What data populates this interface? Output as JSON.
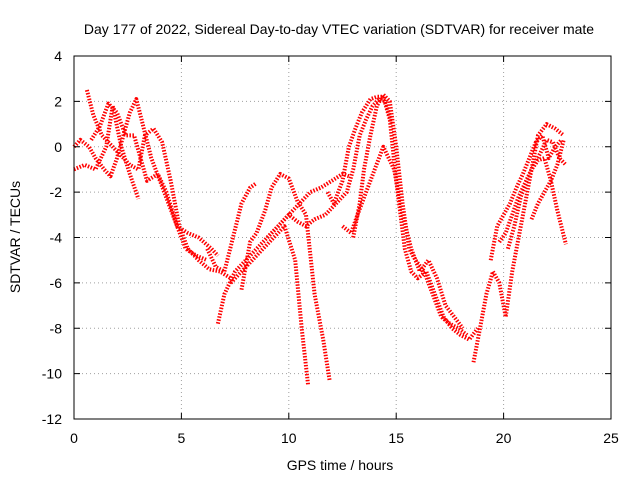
{
  "chart_data": {
    "type": "scatter",
    "title": "Day 177 of 2022, Sidereal Day-to-day VTEC variation (SDTVAR) for receiver mate",
    "xlabel": "GPS time / hours",
    "ylabel": "SDTVAR / TECUs",
    "xlim": [
      0,
      25
    ],
    "ylim": [
      -12,
      4
    ],
    "xticks": [
      0,
      5,
      10,
      15,
      20,
      25
    ],
    "yticks": [
      4,
      2,
      0,
      -2,
      -4,
      -6,
      -8,
      -10,
      -12
    ],
    "grid": true,
    "marker": "plus",
    "color": "#ff0000",
    "series": [
      {
        "x": [
          0.6,
          0.9,
          1.3,
          1.8,
          2.2,
          2.6,
          3.0,
          3.3,
          3.7,
          4.1,
          4.5,
          4.9,
          5.3,
          5.8,
          6.3,
          6.8,
          7.3
        ],
        "y": [
          2.5,
          1.4,
          0.5,
          0.0,
          -0.4,
          -0.8,
          -1.0,
          0.5,
          0.8,
          0.2,
          -1.5,
          -3.5,
          -4.5,
          -5.0,
          -5.4,
          -5.5,
          -5.8
        ]
      },
      {
        "x": [
          0.0,
          0.3,
          0.7,
          1.0,
          1.4,
          1.7,
          2.0,
          2.3,
          2.6,
          2.9,
          3.2,
          3.6,
          4.0,
          4.4,
          4.8,
          5.2,
          5.7,
          6.2
        ],
        "y": [
          0.0,
          0.3,
          0.0,
          -0.5,
          -1.0,
          -1.3,
          -0.5,
          0.5,
          1.5,
          2.1,
          1.0,
          -0.5,
          -1.5,
          -2.5,
          -3.5,
          -4.5,
          -4.8,
          -5.0
        ]
      },
      {
        "x": [
          0.0,
          0.5,
          1.0,
          1.5,
          1.8,
          2.2,
          2.6,
          3.0
        ],
        "y": [
          -1.0,
          -0.8,
          -1.0,
          0.0,
          1.8,
          0.0,
          -1.2,
          -2.3
        ]
      },
      {
        "x": [
          0.8,
          1.2,
          1.6,
          2.0,
          2.4,
          2.8,
          3.4,
          3.9,
          4.3,
          4.8,
          5.3,
          5.8,
          6.4,
          6.7
        ],
        "y": [
          0.3,
          0.9,
          1.9,
          1.5,
          0.5,
          0.5,
          -1.5,
          -1.2,
          -2.0,
          -3.5,
          -3.8,
          -4.0,
          -4.5,
          -4.8
        ]
      },
      {
        "x": [
          6.7,
          7.0,
          7.5,
          8.0,
          8.5,
          9.0,
          9.5,
          10.0,
          10.5,
          11.0,
          11.5,
          12.0,
          12.5,
          12.8
        ],
        "y": [
          -7.8,
          -6.5,
          -5.5,
          -5.0,
          -4.5,
          -4.0,
          -3.5,
          -3.0,
          -2.5,
          -2.0,
          -1.8,
          -1.5,
          -1.2,
          -1.3
        ]
      },
      {
        "x": [
          6.2,
          6.6,
          7.0,
          7.4,
          7.8,
          8.2,
          8.5
        ],
        "y": [
          -4.5,
          -5.3,
          -5.5,
          -4.0,
          -2.5,
          -1.8,
          -1.6
        ]
      },
      {
        "x": [
          7.3,
          7.8,
          8.3,
          8.8,
          9.3,
          9.8,
          10.3,
          10.6,
          10.9
        ],
        "y": [
          -6.0,
          -5.5,
          -5.0,
          -4.5,
          -4.0,
          -3.5,
          -5.0,
          -8.0,
          -10.5
        ]
      },
      {
        "x": [
          7.8,
          8.2,
          8.5,
          8.9,
          9.2,
          9.6,
          10.0,
          10.4,
          10.8,
          11.2,
          11.6,
          11.9
        ],
        "y": [
          -6.3,
          -4.2,
          -3.8,
          -2.8,
          -1.8,
          -1.2,
          -1.4,
          -2.4,
          -3.0,
          -6.5,
          -8.5,
          -10.3
        ]
      },
      {
        "x": [
          9.0,
          9.5,
          10.0,
          10.4,
          10.8,
          11.2,
          11.7,
          12.2,
          12.7,
          13.0,
          13.3,
          13.6,
          13.9,
          14.2,
          14.5,
          14.8
        ],
        "y": [
          -4.0,
          -3.5,
          -3.0,
          -3.3,
          -3.5,
          -3.2,
          -3.0,
          -2.5,
          -2.0,
          -1.0,
          0.5,
          1.2,
          1.8,
          2.1,
          2.0,
          1.0
        ]
      },
      {
        "x": [
          11.8,
          12.1,
          12.5,
          12.8,
          13.1,
          13.4,
          13.8,
          14.1,
          14.4,
          14.7,
          15.0,
          15.4,
          15.7,
          16.0,
          16.4,
          16.8,
          17.2,
          17.6,
          18.0,
          18.4,
          18.8
        ],
        "y": [
          -2.0,
          -2.5,
          -1.5,
          0.0,
          0.8,
          1.5,
          2.1,
          2.2,
          2.2,
          1.2,
          -1.5,
          -4.5,
          -5.5,
          -5.8,
          -5.5,
          -6.5,
          -7.5,
          -8.0,
          -8.3,
          -8.5,
          -8.0
        ]
      },
      {
        "x": [
          13.0,
          13.3,
          13.5,
          13.8,
          14.1,
          14.4,
          14.7,
          15.0,
          15.3,
          15.6,
          15.9,
          16.3,
          16.7,
          17.1,
          17.5,
          17.9,
          18.3
        ],
        "y": [
          -4.0,
          -2.5,
          -1.0,
          0.5,
          1.8,
          2.3,
          2.0,
          0.0,
          -2.5,
          -4.5,
          -5.0,
          -5.5,
          -6.5,
          -7.5,
          -7.8,
          -8.0,
          -8.3
        ]
      },
      {
        "x": [
          12.5,
          12.9,
          13.2,
          13.6,
          14.0,
          14.4,
          14.9,
          15.3,
          15.7,
          16.1,
          16.5,
          16.9,
          17.3,
          17.7,
          18.1
        ],
        "y": [
          -3.5,
          -3.8,
          -3.0,
          -2.0,
          -1.0,
          0.0,
          -1.0,
          -3.0,
          -4.5,
          -5.5,
          -5.0,
          -5.8,
          -7.0,
          -7.5,
          -8.0
        ]
      },
      {
        "x": [
          18.6,
          18.9,
          19.2,
          19.5,
          19.8,
          20.1,
          20.4,
          20.8,
          21.2,
          21.6,
          22.0,
          22.4,
          22.8
        ],
        "y": [
          -9.5,
          -8.0,
          -6.5,
          -5.5,
          -6.0,
          -7.5,
          -5.5,
          -3.5,
          -1.5,
          0.5,
          1.0,
          0.8,
          0.5
        ]
      },
      {
        "x": [
          19.4,
          19.7,
          20.0,
          20.3,
          20.6,
          20.9,
          21.2,
          21.5,
          21.8,
          22.1,
          22.4,
          22.7
        ],
        "y": [
          -5.0,
          -3.5,
          -3.0,
          -2.5,
          -1.8,
          -1.2,
          -0.5,
          0.2,
          0.5,
          -0.5,
          0.0,
          0.3
        ]
      },
      {
        "x": [
          19.8,
          20.1,
          20.4,
          20.7,
          21.0,
          21.3,
          21.6,
          21.9,
          22.2,
          22.5,
          22.9
        ],
        "y": [
          -4.2,
          -3.8,
          -3.0,
          -2.2,
          -1.6,
          -1.0,
          -0.6,
          -0.5,
          -1.5,
          -2.8,
          -4.3
        ]
      },
      {
        "x": [
          20.2,
          20.5,
          20.8,
          21.1,
          21.4,
          21.7,
          22.0,
          22.3,
          22.6,
          22.9
        ],
        "y": [
          -4.5,
          -3.5,
          -2.2,
          -1.5,
          -0.8,
          -0.3,
          0.3,
          0.2,
          -0.5,
          -0.8
        ]
      },
      {
        "x": [
          21.3,
          21.6,
          21.9,
          22.2,
          22.5,
          22.8
        ],
        "y": [
          -3.2,
          -2.5,
          -2.0,
          -1.5,
          -0.8,
          0.3
        ]
      }
    ]
  }
}
